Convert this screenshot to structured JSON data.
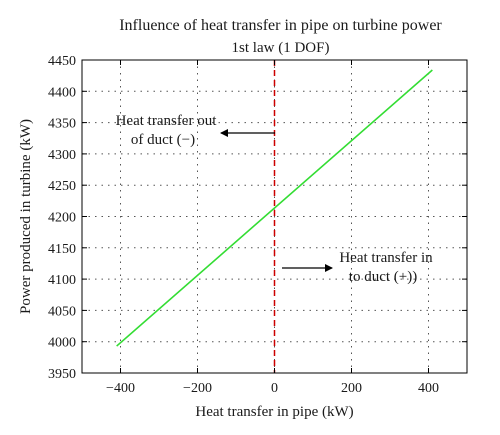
{
  "chart_data": {
    "type": "line",
    "title": "Influence of heat transfer in pipe on turbine power",
    "subtitle": "1st law (1 DOF)",
    "xlabel": "Heat transfer in pipe (kW)",
    "ylabel": "Power produced in turbine (kW)",
    "xlim": [
      -500,
      500
    ],
    "ylim": [
      3950,
      4450
    ],
    "xticks": [
      -400,
      -200,
      0,
      200,
      400
    ],
    "yticks": [
      3950,
      4000,
      4050,
      4100,
      4150,
      4200,
      4250,
      4300,
      4350,
      4400,
      4450
    ],
    "grid": true,
    "series": [
      {
        "x": [
          -410,
          410
        ],
        "y": [
          3993,
          4434
        ],
        "color": "#33dd33"
      }
    ],
    "reference_line": {
      "x": 0,
      "color": "#cc0000",
      "style": "dashed"
    },
    "annotations": [
      {
        "lines": [
          "Heat transfer out",
          "of duct (−)"
        ],
        "arrow": "left"
      },
      {
        "lines": [
          "Heat transfer in",
          "to duct (+))"
        ],
        "arrow": "right"
      }
    ]
  }
}
